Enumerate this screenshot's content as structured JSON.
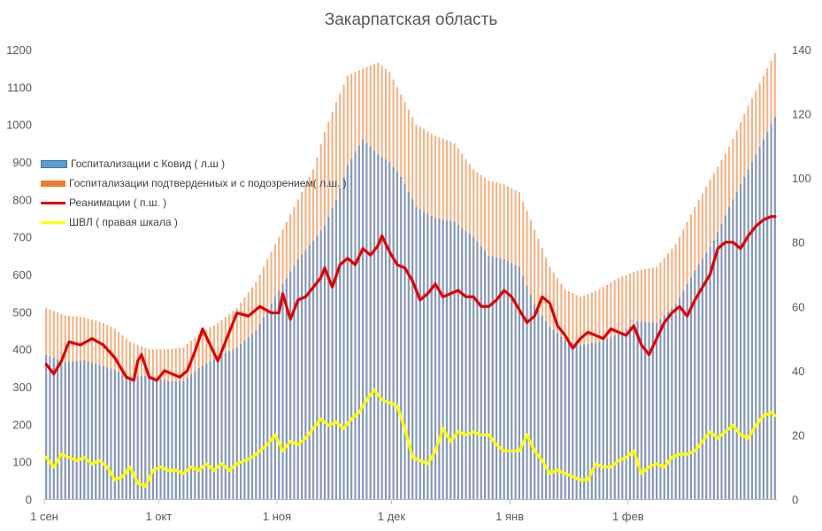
{
  "chart_data": {
    "type": "bar",
    "title": "Закарпатская область",
    "x_tick_labels": [
      "1 сен",
      "1 окт",
      "1 ноя",
      "1 дек",
      "1 янв",
      "1 фев"
    ],
    "y_left_ticks": [
      "0",
      "100",
      "200",
      "300",
      "400",
      "500",
      "600",
      "700",
      "800",
      "900",
      "1000",
      "1100",
      "1200"
    ],
    "y_right_ticks": [
      "0",
      "20",
      "40",
      "60",
      "80",
      "100",
      "120",
      "140"
    ],
    "ylim_left": [
      0,
      1200
    ],
    "ylim_right": [
      0,
      140
    ],
    "grid": false,
    "legend_position": "left",
    "colors": {
      "hosp_covid": "#5b9bd5",
      "hosp_confirmed_suspected": "#f4b183",
      "icu": "#e00000",
      "ventilation": "#ffff00"
    },
    "series": [
      {
        "name": "Госпитализации с Ковид ( л.ш )",
        "axis": "left",
        "kind": "bar",
        "anchors": [
          [
            0,
            385
          ],
          [
            5,
            365
          ],
          [
            10,
            370
          ],
          [
            15,
            355
          ],
          [
            18,
            345
          ],
          [
            22,
            325
          ],
          [
            27,
            330
          ],
          [
            32,
            315
          ],
          [
            36,
            315
          ],
          [
            40,
            350
          ],
          [
            45,
            380
          ],
          [
            50,
            405
          ],
          [
            55,
            450
          ],
          [
            60,
            540
          ],
          [
            63,
            590
          ],
          [
            66,
            640
          ],
          [
            70,
            690
          ],
          [
            73,
            730
          ],
          [
            76,
            800
          ],
          [
            79,
            890
          ],
          [
            83,
            960
          ],
          [
            87,
            920
          ],
          [
            90,
            900
          ],
          [
            93,
            860
          ],
          [
            97,
            780
          ],
          [
            102,
            750
          ],
          [
            107,
            740
          ],
          [
            112,
            700
          ],
          [
            116,
            650
          ],
          [
            120,
            640
          ],
          [
            124,
            620
          ],
          [
            128,
            520
          ],
          [
            132,
            460
          ],
          [
            136,
            425
          ],
          [
            140,
            410
          ],
          [
            145,
            420
          ],
          [
            150,
            440
          ],
          [
            155,
            475
          ],
          [
            160,
            470
          ],
          [
            165,
            520
          ],
          [
            170,
            610
          ],
          [
            175,
            690
          ],
          [
            179,
            780
          ],
          [
            184,
            880
          ],
          [
            188,
            960
          ],
          [
            191,
            1020
          ]
        ]
      },
      {
        "name": "Госпитализации подтвердениых и с подозрением( л.ш. )",
        "axis": "left",
        "kind": "bar",
        "anchors": [
          [
            0,
            510
          ],
          [
            5,
            490
          ],
          [
            10,
            485
          ],
          [
            15,
            470
          ],
          [
            18,
            455
          ],
          [
            22,
            420
          ],
          [
            27,
            400
          ],
          [
            32,
            400
          ],
          [
            36,
            405
          ],
          [
            40,
            440
          ],
          [
            45,
            470
          ],
          [
            50,
            510
          ],
          [
            55,
            580
          ],
          [
            60,
            680
          ],
          [
            63,
            740
          ],
          [
            66,
            800
          ],
          [
            70,
            880
          ],
          [
            73,
            980
          ],
          [
            76,
            1060
          ],
          [
            79,
            1130
          ],
          [
            83,
            1150
          ],
          [
            87,
            1165
          ],
          [
            90,
            1140
          ],
          [
            93,
            1080
          ],
          [
            97,
            1000
          ],
          [
            102,
            970
          ],
          [
            107,
            950
          ],
          [
            112,
            880
          ],
          [
            116,
            850
          ],
          [
            120,
            840
          ],
          [
            124,
            820
          ],
          [
            128,
            720
          ],
          [
            132,
            620
          ],
          [
            136,
            560
          ],
          [
            140,
            540
          ],
          [
            145,
            560
          ],
          [
            150,
            590
          ],
          [
            155,
            610
          ],
          [
            160,
            620
          ],
          [
            165,
            680
          ],
          [
            170,
            780
          ],
          [
            175,
            870
          ],
          [
            179,
            940
          ],
          [
            184,
            1050
          ],
          [
            188,
            1130
          ],
          [
            191,
            1190
          ]
        ]
      },
      {
        "name": "Реанимации ( п.ш. )",
        "axis": "right",
        "kind": "line",
        "anchors": [
          [
            0,
            42
          ],
          [
            2,
            39
          ],
          [
            4,
            43
          ],
          [
            6,
            49
          ],
          [
            9,
            48
          ],
          [
            12,
            50
          ],
          [
            15,
            48
          ],
          [
            18,
            44
          ],
          [
            21,
            38
          ],
          [
            23,
            37
          ],
          [
            24,
            43
          ],
          [
            25,
            45
          ],
          [
            27,
            38
          ],
          [
            29,
            37
          ],
          [
            31,
            40
          ],
          [
            33,
            39
          ],
          [
            35,
            38
          ],
          [
            37,
            40
          ],
          [
            39,
            46
          ],
          [
            41,
            53
          ],
          [
            43,
            48
          ],
          [
            45,
            43
          ],
          [
            47,
            49
          ],
          [
            50,
            58
          ],
          [
            53,
            57
          ],
          [
            56,
            60
          ],
          [
            59,
            58
          ],
          [
            61,
            58
          ],
          [
            62,
            64
          ],
          [
            64,
            56
          ],
          [
            66,
            62
          ],
          [
            68,
            63
          ],
          [
            70,
            66
          ],
          [
            72,
            69
          ],
          [
            73,
            72
          ],
          [
            75,
            66
          ],
          [
            77,
            73
          ],
          [
            79,
            75
          ],
          [
            81,
            73
          ],
          [
            83,
            78
          ],
          [
            85,
            76
          ],
          [
            87,
            79
          ],
          [
            88,
            82
          ],
          [
            90,
            77
          ],
          [
            92,
            73
          ],
          [
            94,
            72
          ],
          [
            96,
            68
          ],
          [
            98,
            62
          ],
          [
            100,
            64
          ],
          [
            102,
            67
          ],
          [
            104,
            63
          ],
          [
            106,
            64
          ],
          [
            108,
            65
          ],
          [
            110,
            63
          ],
          [
            112,
            63
          ],
          [
            114,
            60
          ],
          [
            116,
            60
          ],
          [
            118,
            62
          ],
          [
            120,
            65
          ],
          [
            122,
            63
          ],
          [
            124,
            59
          ],
          [
            126,
            55
          ],
          [
            128,
            57
          ],
          [
            130,
            63
          ],
          [
            132,
            61
          ],
          [
            134,
            54
          ],
          [
            136,
            51
          ],
          [
            138,
            47
          ],
          [
            140,
            50
          ],
          [
            142,
            52
          ],
          [
            144,
            51
          ],
          [
            146,
            50
          ],
          [
            148,
            53
          ],
          [
            150,
            52
          ],
          [
            152,
            51
          ],
          [
            154,
            54
          ],
          [
            156,
            48
          ],
          [
            158,
            45
          ],
          [
            160,
            50
          ],
          [
            162,
            55
          ],
          [
            164,
            58
          ],
          [
            166,
            60
          ],
          [
            168,
            57
          ],
          [
            170,
            62
          ],
          [
            172,
            66
          ],
          [
            174,
            70
          ],
          [
            176,
            78
          ],
          [
            178,
            80
          ],
          [
            180,
            80
          ],
          [
            182,
            78
          ],
          [
            184,
            82
          ],
          [
            186,
            85
          ],
          [
            188,
            87
          ],
          [
            190,
            88
          ],
          [
            191,
            88
          ]
        ]
      },
      {
        "name": "ШВЛ ( правая шкала )",
        "axis": "right",
        "kind": "line",
        "anchors": [
          [
            0,
            13
          ],
          [
            2,
            10
          ],
          [
            4,
            14
          ],
          [
            6,
            13
          ],
          [
            8,
            12
          ],
          [
            10,
            13
          ],
          [
            12,
            11
          ],
          [
            14,
            12
          ],
          [
            16,
            10
          ],
          [
            18,
            6
          ],
          [
            20,
            7
          ],
          [
            22,
            10
          ],
          [
            24,
            5
          ],
          [
            26,
            4
          ],
          [
            28,
            9
          ],
          [
            30,
            10
          ],
          [
            32,
            9
          ],
          [
            34,
            9
          ],
          [
            36,
            8
          ],
          [
            38,
            10
          ],
          [
            40,
            9
          ],
          [
            42,
            11
          ],
          [
            44,
            9
          ],
          [
            46,
            11
          ],
          [
            48,
            9
          ],
          [
            50,
            11
          ],
          [
            52,
            12
          ],
          [
            54,
            13
          ],
          [
            56,
            15
          ],
          [
            58,
            17
          ],
          [
            60,
            20
          ],
          [
            62,
            15
          ],
          [
            64,
            18
          ],
          [
            66,
            17
          ],
          [
            68,
            19
          ],
          [
            70,
            22
          ],
          [
            72,
            25
          ],
          [
            74,
            23
          ],
          [
            76,
            24
          ],
          [
            78,
            22
          ],
          [
            80,
            25
          ],
          [
            82,
            27
          ],
          [
            84,
            31
          ],
          [
            86,
            34
          ],
          [
            88,
            31
          ],
          [
            90,
            30
          ],
          [
            92,
            29
          ],
          [
            94,
            22
          ],
          [
            96,
            13
          ],
          [
            98,
            12
          ],
          [
            100,
            11
          ],
          [
            102,
            15
          ],
          [
            104,
            22
          ],
          [
            106,
            18
          ],
          [
            108,
            21
          ],
          [
            110,
            20
          ],
          [
            112,
            21
          ],
          [
            114,
            20
          ],
          [
            116,
            20
          ],
          [
            118,
            17
          ],
          [
            120,
            15
          ],
          [
            122,
            15
          ],
          [
            124,
            15
          ],
          [
            126,
            20
          ],
          [
            128,
            15
          ],
          [
            130,
            12
          ],
          [
            132,
            8
          ],
          [
            134,
            9
          ],
          [
            136,
            8
          ],
          [
            138,
            7
          ],
          [
            140,
            6
          ],
          [
            142,
            6
          ],
          [
            144,
            11
          ],
          [
            146,
            10
          ],
          [
            148,
            10
          ],
          [
            150,
            12
          ],
          [
            152,
            13
          ],
          [
            154,
            15
          ],
          [
            156,
            8
          ],
          [
            158,
            10
          ],
          [
            160,
            11
          ],
          [
            162,
            10
          ],
          [
            164,
            13
          ],
          [
            166,
            14
          ],
          [
            168,
            14
          ],
          [
            170,
            15
          ],
          [
            172,
            18
          ],
          [
            174,
            21
          ],
          [
            176,
            19
          ],
          [
            178,
            21
          ],
          [
            180,
            23
          ],
          [
            182,
            20
          ],
          [
            184,
            19
          ],
          [
            186,
            23
          ],
          [
            188,
            26
          ],
          [
            190,
            27
          ],
          [
            191,
            26
          ]
        ]
      }
    ]
  }
}
